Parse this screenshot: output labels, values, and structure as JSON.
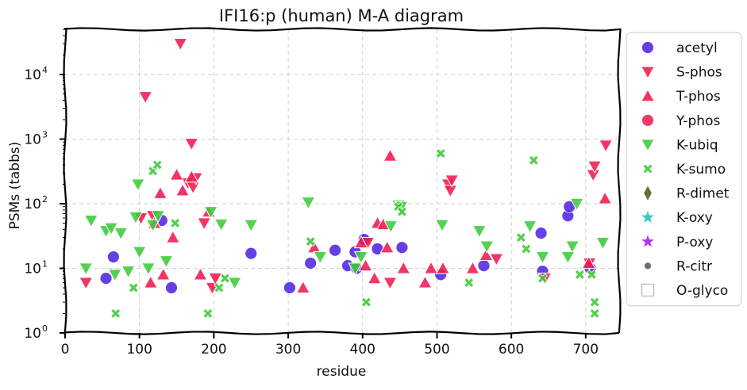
{
  "chart_data": {
    "type": "scatter",
    "title": "IFI16:p (human) M-A diagram",
    "xlabel": "residue",
    "ylabel": "PSMs (tabbs)",
    "xlim": [
      0,
      745
    ],
    "ylim": [
      1,
      50000
    ],
    "yscale": "log",
    "x_ticks": [
      0,
      100,
      200,
      300,
      400,
      500,
      600,
      700
    ],
    "y_ticks": [
      {
        "value": 1,
        "label": "10^0"
      },
      {
        "value": 10,
        "label": "10^1"
      },
      {
        "value": 100,
        "label": "10^2"
      },
      {
        "value": 1000,
        "label": "10^3"
      },
      {
        "value": 10000,
        "label": "10^4"
      }
    ],
    "grid": true,
    "legend_position": "outside-right",
    "series": [
      {
        "name": "acetyl",
        "marker": "circle",
        "color": "#4b1fe0",
        "points": [
          [
            55,
            7
          ],
          [
            65,
            15
          ],
          [
            130,
            55
          ],
          [
            143,
            5
          ],
          [
            250,
            17
          ],
          [
            302,
            5
          ],
          [
            330,
            12
          ],
          [
            363,
            19
          ],
          [
            380,
            11
          ],
          [
            390,
            18
          ],
          [
            392,
            10
          ],
          [
            402,
            28
          ],
          [
            420,
            20
          ],
          [
            453,
            21
          ],
          [
            505,
            8
          ],
          [
            563,
            11
          ],
          [
            640,
            35
          ],
          [
            642,
            9
          ],
          [
            676,
            65
          ],
          [
            678,
            90
          ],
          [
            706,
            10
          ]
        ]
      },
      {
        "name": "S-phos",
        "marker": "triangle-down",
        "color": "#f0194f",
        "points": [
          [
            28,
            6
          ],
          [
            102,
            60
          ],
          [
            108,
            4500
          ],
          [
            118,
            65
          ],
          [
            155,
            30000
          ],
          [
            165,
            210
          ],
          [
            170,
            850
          ],
          [
            172,
            180
          ],
          [
            176,
            250
          ],
          [
            187,
            50
          ],
          [
            198,
            5
          ],
          [
            202,
            7
          ],
          [
            407,
            25
          ],
          [
            437,
            6
          ],
          [
            515,
            200
          ],
          [
            518,
            160
          ],
          [
            520,
            230
          ],
          [
            580,
            14
          ],
          [
            645,
            7
          ],
          [
            705,
            12
          ],
          [
            710,
            280
          ],
          [
            712,
            380
          ],
          [
            727,
            800
          ]
        ]
      },
      {
        "name": "T-phos",
        "marker": "triangle-up",
        "color": "#f0194f",
        "points": [
          [
            115,
            6
          ],
          [
            120,
            50
          ],
          [
            128,
            145
          ],
          [
            132,
            8
          ],
          [
            145,
            30
          ],
          [
            150,
            280
          ],
          [
            158,
            160
          ],
          [
            170,
            260
          ],
          [
            182,
            8
          ],
          [
            193,
            75
          ],
          [
            320,
            5
          ],
          [
            335,
            21
          ],
          [
            398,
            25
          ],
          [
            404,
            11
          ],
          [
            416,
            7
          ],
          [
            420,
            50
          ],
          [
            428,
            48
          ],
          [
            433,
            21
          ],
          [
            437,
            550
          ],
          [
            455,
            10
          ],
          [
            484,
            6
          ],
          [
            492,
            10
          ],
          [
            508,
            10
          ],
          [
            548,
            10
          ],
          [
            566,
            16
          ],
          [
            704,
            12
          ],
          [
            726,
            120
          ]
        ]
      },
      {
        "name": "Y-phos",
        "marker": "circle",
        "color": "#f0194f",
        "points": []
      },
      {
        "name": "K-ubiq",
        "marker": "triangle-down",
        "color": "#3ecb3a",
        "points": [
          [
            28,
            10
          ],
          [
            35,
            55
          ],
          [
            55,
            38
          ],
          [
            62,
            42
          ],
          [
            67,
            8
          ],
          [
            75,
            35
          ],
          [
            85,
            9
          ],
          [
            95,
            62
          ],
          [
            98,
            200
          ],
          [
            100,
            18
          ],
          [
            112,
            10
          ],
          [
            118,
            47
          ],
          [
            125,
            65
          ],
          [
            136,
            13
          ],
          [
            196,
            75
          ],
          [
            210,
            48
          ],
          [
            228,
            6
          ],
          [
            250,
            47
          ],
          [
            327,
            105
          ],
          [
            343,
            15
          ],
          [
            390,
            10
          ],
          [
            398,
            15
          ],
          [
            438,
            45
          ],
          [
            448,
            95
          ],
          [
            452,
            90
          ],
          [
            507,
            47
          ],
          [
            557,
            38
          ],
          [
            567,
            22
          ],
          [
            625,
            45
          ],
          [
            642,
            15
          ],
          [
            682,
            22
          ],
          [
            676,
            15
          ],
          [
            688,
            100
          ],
          [
            723,
            25
          ]
        ]
      },
      {
        "name": "K-sumo",
        "marker": "x",
        "color": "#3ecb3a",
        "points": [
          [
            68,
            2
          ],
          [
            92,
            5
          ],
          [
            118,
            320
          ],
          [
            124,
            400
          ],
          [
            148,
            50
          ],
          [
            192,
            2
          ],
          [
            207,
            5
          ],
          [
            215,
            7
          ],
          [
            330,
            26
          ],
          [
            405,
            3
          ],
          [
            448,
            90
          ],
          [
            453,
            75
          ],
          [
            505,
            600
          ],
          [
            543,
            6
          ],
          [
            613,
            30
          ],
          [
            620,
            20
          ],
          [
            630,
            470
          ],
          [
            642,
            7
          ],
          [
            692,
            8
          ],
          [
            708,
            8
          ],
          [
            712,
            3
          ],
          [
            712,
            2
          ]
        ]
      },
      {
        "name": "R-dimet",
        "marker": "diamond",
        "color": "#6b6b34",
        "points": []
      },
      {
        "name": "K-oxy",
        "marker": "star",
        "color": "#35c9cc",
        "points": []
      },
      {
        "name": "P-oxy",
        "marker": "star",
        "color": "#b235e6",
        "points": []
      },
      {
        "name": "R-citr",
        "marker": "dot",
        "color": "#6f6f6f",
        "points": []
      },
      {
        "name": "O-glyco",
        "marker": "square-open",
        "color": "#bdbdbd",
        "points": []
      }
    ]
  }
}
